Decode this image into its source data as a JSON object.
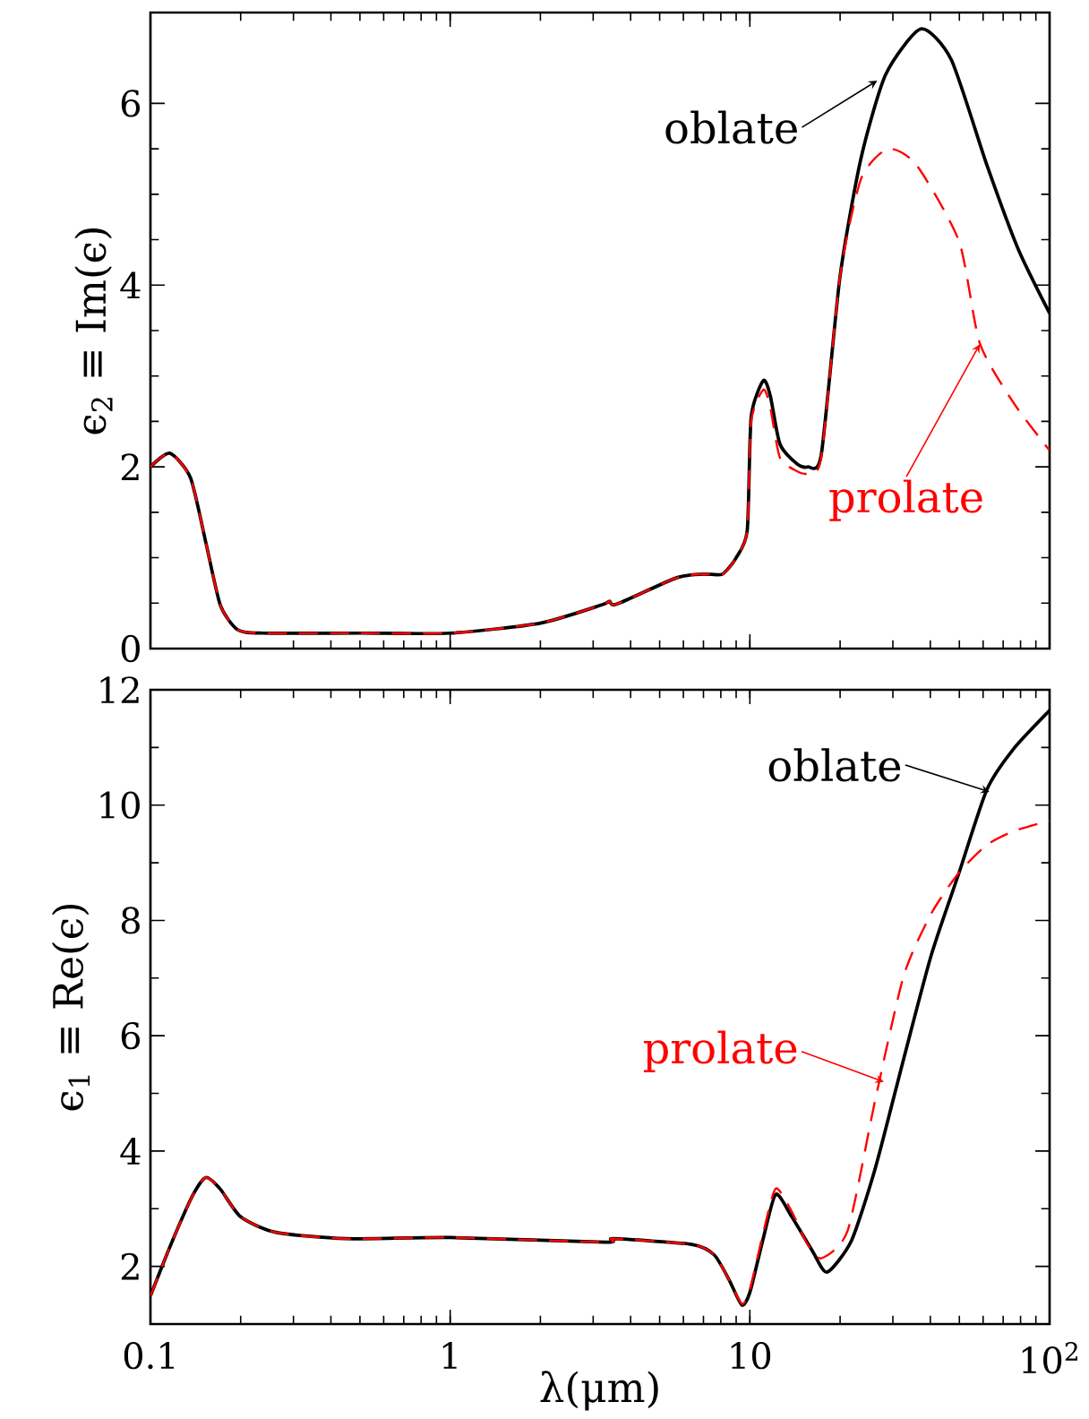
{
  "chart_data": [
    {
      "type": "line",
      "ylabel": "ϵ$_{2}$ ≡ Im(ϵ)",
      "log": "x",
      "xlim": [
        0.1,
        100
      ],
      "ylim": [
        0,
        7
      ],
      "xticks": [
        0.1,
        1,
        10,
        100
      ],
      "yticks": [
        0,
        2,
        4,
        6
      ],
      "tick_labels": "y",
      "series": [
        {
          "color": "#000000",
          "line_style": "solid",
          "x": [
            0.1,
            0.116,
            0.136,
            0.153,
            0.171,
            0.195,
            0.235,
            0.5,
            1,
            2.0,
            3.2,
            3.4,
            3.6,
            5.7,
            7.0,
            8.1,
            9.0,
            9.8,
            10.1,
            11.1,
            11.7,
            12.6,
            14.4,
            15.6,
            17.3,
            20,
            23.5,
            28.4,
            37.2,
            47,
            61.8,
            78.5,
            100
          ],
          "values": [
            2.0,
            2.15,
            1.88,
            1.17,
            0.48,
            0.21,
            0.17,
            0.17,
            0.17,
            0.28,
            0.48,
            0.52,
            0.49,
            0.78,
            0.82,
            0.82,
            1.0,
            1.3,
            2.55,
            2.95,
            2.78,
            2.25,
            2.03,
            2.0,
            2.13,
            4.1,
            5.4,
            6.32,
            6.82,
            6.48,
            5.32,
            4.4,
            3.69
          ]
        },
        {
          "color": "#ff0000",
          "line_style": "dashed",
          "x": [
            0.1,
            0.116,
            0.136,
            0.153,
            0.171,
            0.195,
            0.235,
            0.5,
            1,
            2.0,
            3.2,
            3.4,
            3.6,
            5.7,
            7.0,
            8.1,
            9.0,
            9.8,
            10.1,
            11.1,
            11.7,
            12.6,
            14.4,
            15.6,
            17.3,
            20,
            23.5,
            28.9,
            36,
            49.9,
            58.5,
            76,
            100
          ],
          "values": [
            2.0,
            2.15,
            1.88,
            1.17,
            0.48,
            0.21,
            0.17,
            0.17,
            0.17,
            0.28,
            0.48,
            0.52,
            0.49,
            0.78,
            0.82,
            0.82,
            1.0,
            1.3,
            2.5,
            2.85,
            2.65,
            2.1,
            1.95,
            1.93,
            2.1,
            4.1,
            5.17,
            5.5,
            5.32,
            4.48,
            3.36,
            2.7,
            2.18
          ]
        }
      ],
      "annotations": [
        {
          "text": "oblate",
          "x": 26.6,
          "y": 6.25
        },
        {
          "text": "prolate",
          "x": 58.5,
          "y": 3.35
        }
      ]
    },
    {
      "type": "line",
      "xlabel": "λ(μm)",
      "ylabel": "ϵ$_{1}$ ≡ Re(ϵ)",
      "log": "x",
      "xlim": [
        0.1,
        100
      ],
      "ylim": [
        1,
        12
      ],
      "xticks": [
        0.1,
        1,
        10,
        {
          "value": 100,
          "label": "10$^{2}$"
        }
      ],
      "yticks": [
        2,
        4,
        6,
        8,
        10,
        12
      ],
      "series": [
        {
          "color": "#000000",
          "line_style": "solid",
          "x": [
            0.1,
            0.117,
            0.138,
            0.153,
            0.171,
            0.2,
            0.262,
            0.45,
            1,
            3.3,
            3.5,
            6.4,
            7.6,
            8.5,
            9.4,
            10,
            11.1,
            12.2,
            13.8,
            16.2,
            18.1,
            21.8,
            26.2,
            32.6,
            40.3,
            49.9,
            61.8,
            76,
            100
          ],
          "values": [
            1.49,
            2.38,
            3.22,
            3.54,
            3.34,
            2.86,
            2.59,
            2.48,
            2.5,
            2.42,
            2.48,
            2.38,
            2.2,
            1.78,
            1.33,
            1.55,
            2.5,
            3.25,
            2.86,
            2.26,
            1.9,
            2.44,
            3.7,
            5.6,
            7.4,
            8.83,
            10.27,
            10.98,
            11.64
          ]
        },
        {
          "color": "#ff0000",
          "line_style": "dashed",
          "x": [
            0.1,
            0.117,
            0.138,
            0.153,
            0.171,
            0.2,
            0.262,
            0.45,
            1,
            3.3,
            3.5,
            6.4,
            7.6,
            8.5,
            9.4,
            10,
            11.1,
            12.2,
            13.8,
            15.5,
            17.3,
            21.2,
            26.2,
            32.6,
            40.3,
            49.9,
            61.8,
            76,
            100
          ],
          "values": [
            1.49,
            2.38,
            3.22,
            3.54,
            3.34,
            2.86,
            2.59,
            2.48,
            2.5,
            2.42,
            2.48,
            2.38,
            2.2,
            1.78,
            1.35,
            1.6,
            2.6,
            3.35,
            2.95,
            2.4,
            2.14,
            2.62,
            4.89,
            7.04,
            8.12,
            8.83,
            9.31,
            9.55,
            9.73
          ]
        }
      ],
      "annotations": [
        {
          "text": "oblate",
          "x": 63,
          "y": 10.23
        },
        {
          "text": "prolate",
          "x": 28,
          "y": 5.2
        }
      ]
    }
  ]
}
